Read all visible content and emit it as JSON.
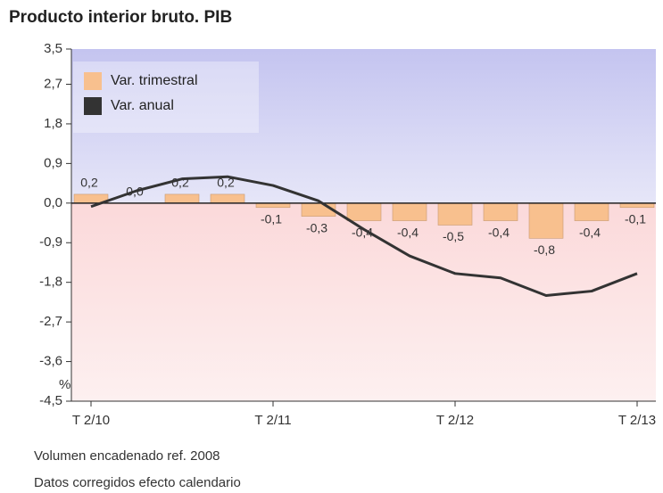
{
  "chart_data": {
    "type": "bar",
    "title": "Producto interior bruto. PIB",
    "y_unit": "%",
    "categories": [
      "T 2/10",
      null,
      null,
      null,
      "T 2/11",
      null,
      null,
      null,
      "T 2/12",
      null,
      null,
      null,
      "T 2/13"
    ],
    "series": [
      {
        "name": "Var. trimestral",
        "type": "bar",
        "color": "#f8c08e",
        "values": [
          0.2,
          0.0,
          0.2,
          0.2,
          -0.1,
          -0.3,
          -0.4,
          -0.4,
          -0.5,
          -0.4,
          -0.8,
          -0.4,
          -0.1
        ],
        "value_labels": [
          "0,2",
          "0,0",
          "0,2",
          "0,2",
          "-0,1",
          "-0,3",
          "-0,4",
          "-0,4",
          "-0,5",
          "-0,4",
          "-0,8",
          "-0,4",
          "-0,1"
        ]
      },
      {
        "name": "Var. anual",
        "type": "line",
        "color": "#333333",
        "values": [
          -0.08,
          0.28,
          0.55,
          0.6,
          0.4,
          0.05,
          -0.6,
          -1.2,
          -1.6,
          -1.7,
          -2.1,
          -2.0,
          -1.6
        ]
      }
    ],
    "ylim": [
      -4.5,
      3.5
    ],
    "yticks": [
      {
        "value": 3.5,
        "label": "3,5"
      },
      {
        "value": 2.7,
        "label": "2,7"
      },
      {
        "value": 1.8,
        "label": "1,8"
      },
      {
        "value": 0.9,
        "label": "0,9"
      },
      {
        "value": 0.0,
        "label": "0,0"
      },
      {
        "value": -0.9,
        "label": "-0,9"
      },
      {
        "value": -1.8,
        "label": "-1,8"
      },
      {
        "value": -2.7,
        "label": "-2,7"
      },
      {
        "value": -3.6,
        "label": "-3,6"
      },
      {
        "value": -4.5,
        "label": "-4,5"
      }
    ],
    "legend": "upper left",
    "notes": [
      "Volumen encadenado ref. 2008",
      "Datos corregidos efecto calendario"
    ]
  }
}
